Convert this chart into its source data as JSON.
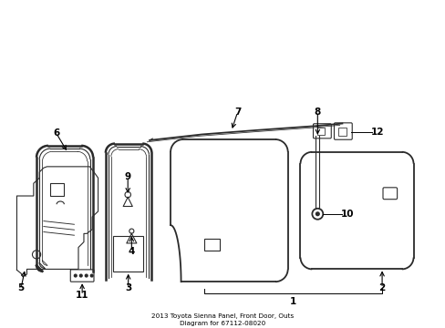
{
  "title": "2013 Toyota Sienna Panel, Front Door, Outs\nDiagram for 67112-08020",
  "bg": "#ffffff",
  "lc": "#2a2a2a",
  "xlim": [
    0,
    10
  ],
  "ylim": [
    0,
    7.5
  ]
}
